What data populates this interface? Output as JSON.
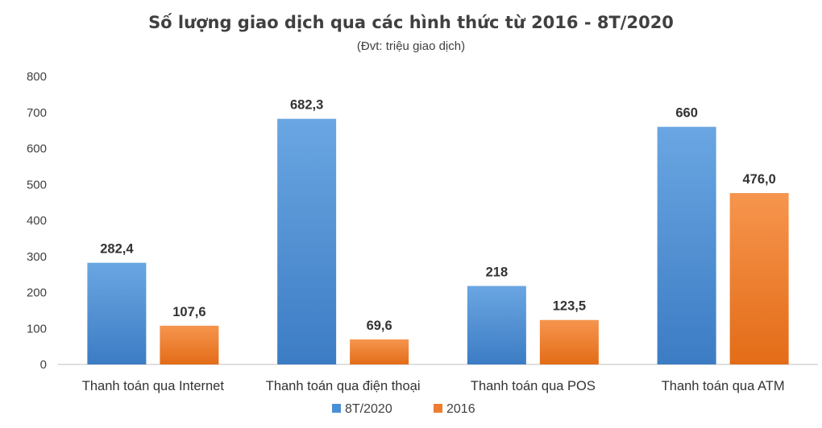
{
  "chart_data": {
    "type": "bar",
    "title": "Số lượng giao dịch qua các hình thức từ 2016 - 8T/2020",
    "subtitle": "(Đvt: triệu giao dịch)",
    "categories": [
      "Thanh toán qua Internet",
      "Thanh toán qua điện thoại",
      "Thanh toán qua POS",
      "Thanh toán qua ATM"
    ],
    "series": [
      {
        "name": "8T/2020",
        "values": [
          282.4,
          682.3,
          218,
          660
        ],
        "labels": [
          "282,4",
          "682,3",
          "218",
          "660"
        ],
        "color": "#4a8fd6"
      },
      {
        "name": "2016",
        "values": [
          107.6,
          69.6,
          123.5,
          476.0
        ],
        "labels": [
          "107,6",
          "69,6",
          "123,5",
          "476,0"
        ],
        "color": "#ed7d31"
      }
    ],
    "ylim": [
      0,
      800
    ],
    "yticks": [
      0,
      100,
      200,
      300,
      400,
      500,
      600,
      700,
      800
    ],
    "grid": false,
    "legend": "bottom"
  }
}
